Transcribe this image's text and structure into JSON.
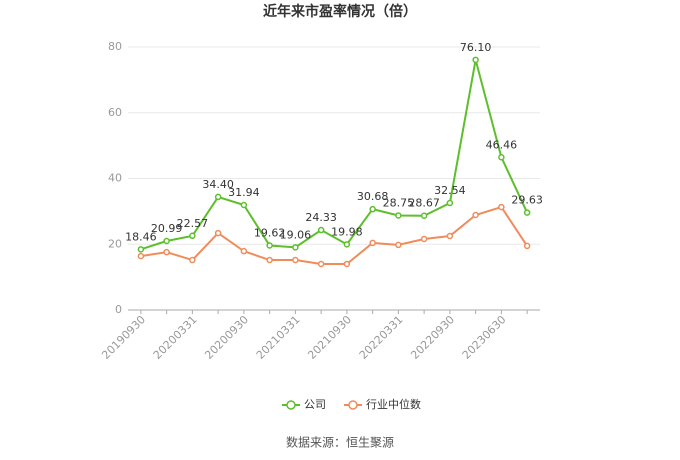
{
  "chart_data": {
    "type": "line",
    "title": "近年来市盈率情况（倍）",
    "categories": [
      "20190930",
      null,
      "20200331",
      null,
      "20200930",
      null,
      "20210331",
      null,
      "20210930",
      null,
      "20220331",
      null,
      "20220930",
      null,
      "20230630",
      null
    ],
    "series": [
      {
        "name": "公司",
        "color": "#5dbf2c",
        "values": [
          18.46,
          20.99,
          22.57,
          34.4,
          31.94,
          19.62,
          19.06,
          24.33,
          19.98,
          30.68,
          28.75,
          28.67,
          32.54,
          76.1,
          46.46,
          29.63
        ],
        "value_labels": [
          "18.46",
          "20.99",
          "22.57",
          "34.40",
          "31.94",
          "19.62",
          "19.06",
          "24.33",
          "19.98",
          "30.68",
          "28.75",
          "28.67",
          "32.54",
          "76.10",
          "46.46",
          "29.63"
        ]
      },
      {
        "name": "行业中位数",
        "color": "#f08c5c",
        "values": [
          16.4,
          17.6,
          15.2,
          23.4,
          17.9,
          15.2,
          15.2,
          14.0,
          14.0,
          20.4,
          19.8,
          21.6,
          22.5,
          28.9,
          31.3,
          19.5
        ]
      }
    ],
    "ylim": [
      0,
      80
    ],
    "yticks": [
      0,
      20,
      40,
      60,
      80
    ],
    "grid": true,
    "legend": "bottom",
    "source": "数据来源：恒生聚源"
  }
}
